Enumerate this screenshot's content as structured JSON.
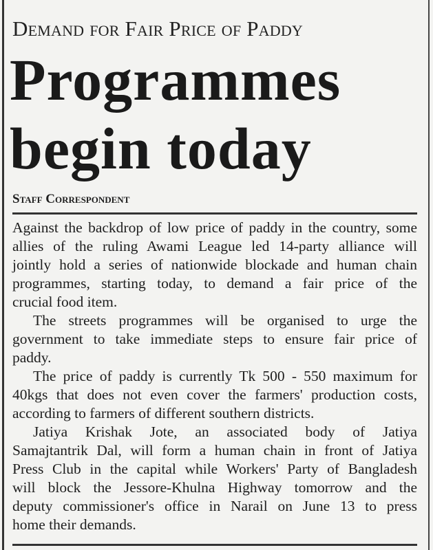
{
  "kicker": "Demand for Fair Price of Paddy",
  "headline": {
    "line1": "Programmes",
    "line2": "begin today"
  },
  "byline": "Staff Correspondent",
  "paragraphs": [
    {
      "lines": [
        "Against the backdrop of low price of paddy in the country, some",
        "allies of the ruling Awami League led 14-party alliance will",
        "jointly hold a series of nationwide blockade and human chain",
        "programmes, starting today, to demand a fair price of the",
        "crucial food item."
      ]
    },
    {
      "lines": [
        "The streets programmes will be organised to urge the",
        "government to take immediate steps to ensure fair price of",
        "paddy."
      ]
    },
    {
      "lines": [
        "The price of paddy is currently Tk 500 - 550 maximum for",
        "40kgs that does not even cover the farmers' production costs,",
        "according to farmers of different southern districts."
      ]
    },
    {
      "lines": [
        "Jatiya Krishak Jote, an associated body of Jatiya",
        "Samajtantrik Dal, will form a human chain in front of Jatiya",
        "Press Club in the capital while Workers' Party of Bangladesh",
        "will block the Jessore-Khulna Highway tomorrow and the",
        "deputy commissioner's office in Narail on June 13 to press",
        "home their demands."
      ]
    }
  ]
}
